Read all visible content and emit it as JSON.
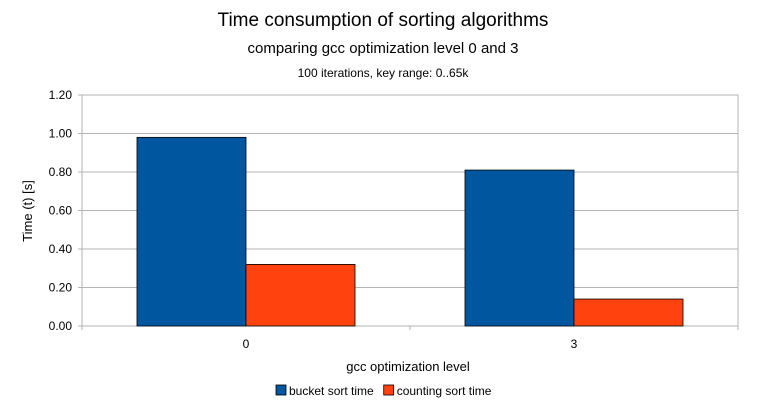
{
  "chart_data": {
    "type": "bar",
    "title": "Time consumption of sorting algorithms",
    "subtitle": "comparing gcc optimization level 0 and 3",
    "subtitle2": "100  iterations,  key  range:  0..65k",
    "xlabel": "gcc  optimization  level",
    "ylabel": "Time (t) [s]",
    "categories": [
      "0",
      "3"
    ],
    "ylim": [
      0,
      1.2
    ],
    "yticks": [
      "0.00",
      "0.20",
      "0.40",
      "0.60",
      "0.80",
      "1.00",
      "1.20"
    ],
    "grid": true,
    "legend_position": "bottom",
    "series": [
      {
        "name": "bucket sort time",
        "values": [
          0.98,
          0.81
        ],
        "color": "#00569f"
      },
      {
        "name": "counting sort time",
        "values": [
          0.32,
          0.14
        ],
        "color": "#ff420e"
      }
    ]
  }
}
